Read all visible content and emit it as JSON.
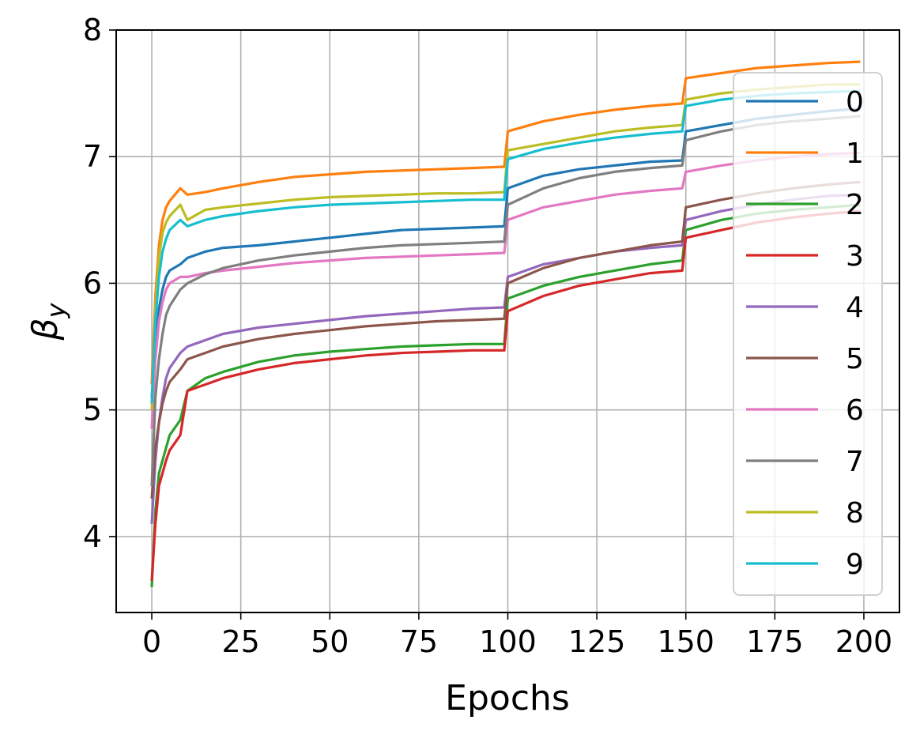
{
  "chart_data": {
    "type": "line",
    "title": "",
    "xlabel": "Epochs",
    "ylabel_base": "β",
    "ylabel_sub": "y",
    "xlim": [
      -10,
      210
    ],
    "ylim": [
      3.4,
      8.0
    ],
    "xticks": [
      0,
      25,
      50,
      75,
      100,
      125,
      150,
      175,
      200
    ],
    "xtick_labels": [
      "0",
      "25",
      "50",
      "75",
      "100",
      "125",
      "150",
      "175",
      "200"
    ],
    "yticks": [
      4,
      5,
      6,
      7,
      8
    ],
    "ytick_labels": [
      "4",
      "5",
      "6",
      "7",
      "8"
    ],
    "grid": true,
    "legend_position": "right",
    "epochs": [
      0,
      1,
      2,
      3,
      4,
      5,
      8,
      10,
      15,
      20,
      30,
      40,
      50,
      60,
      70,
      80,
      90,
      99,
      100,
      110,
      120,
      130,
      140,
      149,
      150,
      160,
      170,
      180,
      190,
      199
    ],
    "series": [
      {
        "name": "0",
        "color": "#1f77b4",
        "values": [
          5.1,
          5.5,
          5.8,
          5.95,
          6.05,
          6.1,
          6.15,
          6.2,
          6.25,
          6.28,
          6.3,
          6.33,
          6.36,
          6.39,
          6.42,
          6.43,
          6.44,
          6.45,
          6.75,
          6.85,
          6.9,
          6.93,
          6.96,
          6.97,
          7.2,
          7.25,
          7.3,
          7.33,
          7.36,
          7.38
        ]
      },
      {
        "name": "1",
        "color": "#ff7f0e",
        "values": [
          5.2,
          5.9,
          6.3,
          6.5,
          6.6,
          6.65,
          6.75,
          6.7,
          6.72,
          6.75,
          6.8,
          6.84,
          6.86,
          6.88,
          6.89,
          6.9,
          6.91,
          6.92,
          7.2,
          7.28,
          7.33,
          7.37,
          7.4,
          7.42,
          7.62,
          7.66,
          7.7,
          7.72,
          7.74,
          7.75
        ]
      },
      {
        "name": "2",
        "color": "#2ca02c",
        "values": [
          3.6,
          4.2,
          4.5,
          4.6,
          4.7,
          4.8,
          4.92,
          5.15,
          5.25,
          5.3,
          5.38,
          5.43,
          5.46,
          5.48,
          5.5,
          5.51,
          5.52,
          5.52,
          5.88,
          5.98,
          6.05,
          6.1,
          6.15,
          6.18,
          6.42,
          6.5,
          6.55,
          6.58,
          6.6,
          6.62
        ]
      },
      {
        "name": "3",
        "color": "#d62728",
        "values": [
          3.65,
          4.1,
          4.4,
          4.5,
          4.6,
          4.68,
          4.8,
          5.15,
          5.2,
          5.25,
          5.32,
          5.37,
          5.4,
          5.43,
          5.45,
          5.46,
          5.47,
          5.47,
          5.78,
          5.9,
          5.98,
          6.03,
          6.08,
          6.1,
          6.36,
          6.42,
          6.48,
          6.52,
          6.55,
          6.57
        ]
      },
      {
        "name": "4",
        "color": "#9467bd",
        "values": [
          4.1,
          4.6,
          4.9,
          5.1,
          5.25,
          5.33,
          5.45,
          5.5,
          5.55,
          5.6,
          5.65,
          5.68,
          5.71,
          5.74,
          5.76,
          5.78,
          5.8,
          5.81,
          6.05,
          6.15,
          6.2,
          6.25,
          6.28,
          6.3,
          6.5,
          6.57,
          6.62,
          6.66,
          6.69,
          6.7
        ]
      },
      {
        "name": "5",
        "color": "#8c564b",
        "values": [
          4.3,
          4.7,
          4.9,
          5.05,
          5.15,
          5.22,
          5.32,
          5.4,
          5.45,
          5.5,
          5.56,
          5.6,
          5.63,
          5.66,
          5.68,
          5.7,
          5.71,
          5.72,
          6.0,
          6.12,
          6.2,
          6.25,
          6.3,
          6.33,
          6.6,
          6.66,
          6.71,
          6.75,
          6.78,
          6.8
        ]
      },
      {
        "name": "6",
        "color": "#e377c2",
        "values": [
          4.85,
          5.4,
          5.7,
          5.85,
          5.95,
          6.0,
          6.05,
          6.05,
          6.08,
          6.1,
          6.13,
          6.16,
          6.18,
          6.2,
          6.21,
          6.22,
          6.23,
          6.24,
          6.5,
          6.6,
          6.65,
          6.7,
          6.73,
          6.75,
          6.88,
          6.93,
          6.97,
          7.0,
          7.02,
          7.03
        ]
      },
      {
        "name": "7",
        "color": "#7f7f7f",
        "values": [
          4.4,
          5.1,
          5.4,
          5.6,
          5.75,
          5.82,
          5.95,
          6.0,
          6.07,
          6.12,
          6.18,
          6.22,
          6.25,
          6.28,
          6.3,
          6.31,
          6.32,
          6.33,
          6.62,
          6.75,
          6.83,
          6.88,
          6.91,
          6.93,
          7.13,
          7.2,
          7.25,
          7.28,
          7.3,
          7.32
        ]
      },
      {
        "name": "8",
        "color": "#bcbd22",
        "values": [
          5.0,
          5.8,
          6.2,
          6.4,
          6.48,
          6.53,
          6.62,
          6.5,
          6.58,
          6.6,
          6.63,
          6.66,
          6.68,
          6.69,
          6.7,
          6.71,
          6.71,
          6.72,
          7.05,
          7.1,
          7.15,
          7.2,
          7.23,
          7.25,
          7.45,
          7.5,
          7.53,
          7.55,
          7.57,
          7.57
        ]
      },
      {
        "name": "9",
        "color": "#17becf",
        "values": [
          5.05,
          5.7,
          6.05,
          6.25,
          6.35,
          6.42,
          6.5,
          6.45,
          6.5,
          6.53,
          6.57,
          6.6,
          6.62,
          6.63,
          6.64,
          6.65,
          6.66,
          6.66,
          6.98,
          7.06,
          7.11,
          7.15,
          7.18,
          7.2,
          7.4,
          7.45,
          7.48,
          7.5,
          7.51,
          7.52
        ]
      }
    ]
  }
}
